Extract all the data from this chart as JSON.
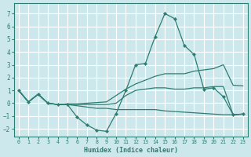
{
  "background_color": "#cde8ec",
  "grid_color": "#b8d8dc",
  "line_color": "#2e7d72",
  "xlabel": "Humidex (Indice chaleur)",
  "xlim": [
    -0.5,
    23.5
  ],
  "ylim": [
    -2.6,
    7.8
  ],
  "xticks": [
    0,
    1,
    2,
    3,
    4,
    5,
    6,
    7,
    8,
    9,
    10,
    11,
    12,
    13,
    14,
    15,
    16,
    17,
    18,
    19,
    20,
    21,
    22,
    23
  ],
  "yticks": [
    -2,
    -1,
    0,
    1,
    2,
    3,
    4,
    5,
    6,
    7
  ],
  "lines": [
    {
      "x": [
        0,
        1,
        2,
        3,
        4,
        5,
        6,
        7,
        8,
        9,
        10,
        11,
        12,
        13,
        14,
        15,
        16,
        17,
        18,
        19,
        20,
        21,
        22,
        23
      ],
      "y": [
        1.0,
        0.1,
        0.7,
        0.0,
        -0.1,
        -0.1,
        -1.1,
        -1.7,
        -2.1,
        -2.2,
        -0.8,
        1.0,
        3.0,
        3.1,
        5.2,
        7.0,
        6.6,
        4.5,
        3.8,
        1.1,
        1.2,
        0.5,
        -0.9,
        -0.85
      ],
      "marker": true
    },
    {
      "x": [
        0,
        1,
        2,
        3,
        4,
        5,
        6,
        7,
        8,
        9,
        10,
        11,
        12,
        13,
        14,
        15,
        16,
        17,
        18,
        19,
        20,
        21,
        22,
        23
      ],
      "y": [
        1.0,
        0.1,
        0.7,
        0.0,
        -0.1,
        -0.05,
        -0.05,
        0.0,
        0.05,
        0.1,
        0.6,
        1.1,
        1.5,
        1.8,
        2.1,
        2.3,
        2.3,
        2.3,
        2.5,
        2.6,
        2.7,
        3.0,
        1.4,
        1.35
      ],
      "marker": false
    },
    {
      "x": [
        0,
        1,
        2,
        3,
        4,
        5,
        6,
        7,
        8,
        9,
        10,
        11,
        12,
        13,
        14,
        15,
        16,
        17,
        18,
        19,
        20,
        21,
        22,
        23
      ],
      "y": [
        1.0,
        0.1,
        0.7,
        0.0,
        -0.1,
        -0.1,
        -0.1,
        -0.1,
        -0.1,
        -0.1,
        0.0,
        0.6,
        1.0,
        1.1,
        1.2,
        1.2,
        1.1,
        1.1,
        1.2,
        1.2,
        1.3,
        1.3,
        -0.9,
        -0.85
      ],
      "marker": false
    },
    {
      "x": [
        0,
        1,
        2,
        3,
        4,
        5,
        6,
        7,
        8,
        9,
        10,
        11,
        12,
        13,
        14,
        15,
        16,
        17,
        18,
        19,
        20,
        21,
        22,
        23
      ],
      "y": [
        1.0,
        0.1,
        0.7,
        0.0,
        -0.1,
        -0.1,
        -0.2,
        -0.3,
        -0.4,
        -0.4,
        -0.5,
        -0.5,
        -0.5,
        -0.5,
        -0.5,
        -0.6,
        -0.65,
        -0.7,
        -0.75,
        -0.8,
        -0.85,
        -0.9,
        -0.9,
        -0.85
      ],
      "marker": false
    }
  ]
}
